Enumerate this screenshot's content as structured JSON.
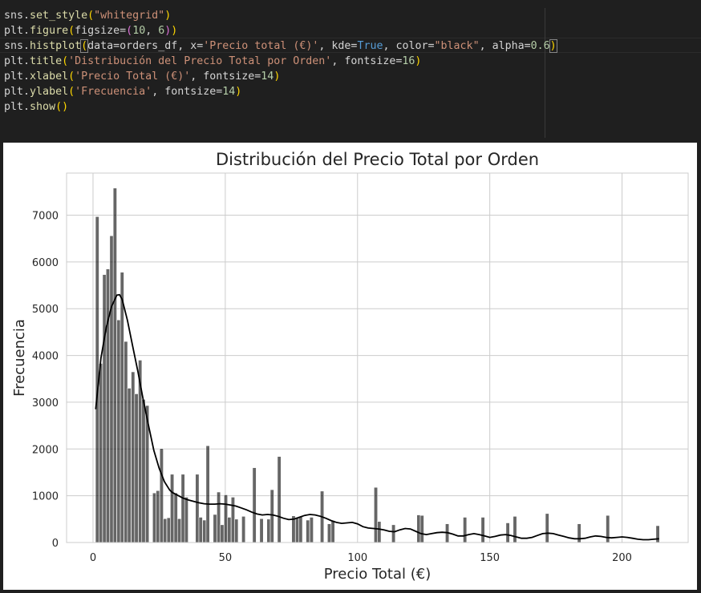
{
  "code": {
    "lines": [
      [
        [
          "sns",
          "t-id"
        ],
        [
          ".",
          "t-id"
        ],
        [
          "set_style",
          "t-fn"
        ],
        [
          "(",
          "t-p1"
        ],
        [
          "\"whitegrid\"",
          "t-str"
        ],
        [
          ")",
          "t-p1"
        ]
      ],
      [
        [
          "plt",
          "t-id"
        ],
        [
          ".",
          "t-id"
        ],
        [
          "figure",
          "t-fn"
        ],
        [
          "(",
          "t-p1"
        ],
        [
          "figsize",
          "t-id"
        ],
        [
          "=",
          "t-id"
        ],
        [
          "(",
          "t-p2"
        ],
        [
          "10",
          "t-num"
        ],
        [
          ", ",
          "t-id"
        ],
        [
          "6",
          "t-num"
        ],
        [
          ")",
          "t-p2"
        ],
        [
          ")",
          "t-p1"
        ]
      ],
      [
        [
          "sns",
          "t-id"
        ],
        [
          ".",
          "t-id"
        ],
        [
          "histplot",
          "t-fn"
        ],
        [
          "(",
          "t-p1 t-bracket-box"
        ],
        [
          "data",
          "t-id"
        ],
        [
          "=",
          "t-id"
        ],
        [
          "orders_df",
          "t-id"
        ],
        [
          ", ",
          "t-id"
        ],
        [
          "x",
          "t-id"
        ],
        [
          "=",
          "t-id"
        ],
        [
          "'Precio total (€)'",
          "t-str"
        ],
        [
          ", ",
          "t-id"
        ],
        [
          "kde",
          "t-id"
        ],
        [
          "=",
          "t-id"
        ],
        [
          "True",
          "t-kw"
        ],
        [
          ", ",
          "t-id"
        ],
        [
          "color",
          "t-id"
        ],
        [
          "=",
          "t-id"
        ],
        [
          "\"black\"",
          "t-str"
        ],
        [
          ", ",
          "t-id"
        ],
        [
          "alpha",
          "t-id"
        ],
        [
          "=",
          "t-id"
        ],
        [
          "0.6",
          "t-num"
        ],
        [
          ")",
          "t-p1 t-bracket-box"
        ]
      ],
      [
        [
          "plt",
          "t-id"
        ],
        [
          ".",
          "t-id"
        ],
        [
          "title",
          "t-fn"
        ],
        [
          "(",
          "t-p1"
        ],
        [
          "'Distribución del Precio Total por Orden'",
          "t-str"
        ],
        [
          ", ",
          "t-id"
        ],
        [
          "fontsize",
          "t-id"
        ],
        [
          "=",
          "t-id"
        ],
        [
          "16",
          "t-num"
        ],
        [
          ")",
          "t-p1"
        ]
      ],
      [
        [
          "plt",
          "t-id"
        ],
        [
          ".",
          "t-id"
        ],
        [
          "xlabel",
          "t-fn"
        ],
        [
          "(",
          "t-p1"
        ],
        [
          "'Precio Total (€)'",
          "t-str"
        ],
        [
          ", ",
          "t-id"
        ],
        [
          "fontsize",
          "t-id"
        ],
        [
          "=",
          "t-id"
        ],
        [
          "14",
          "t-num"
        ],
        [
          ")",
          "t-p1"
        ]
      ],
      [
        [
          "plt",
          "t-id"
        ],
        [
          ".",
          "t-id"
        ],
        [
          "ylabel",
          "t-fn"
        ],
        [
          "(",
          "t-p1"
        ],
        [
          "'Frecuencia'",
          "t-str"
        ],
        [
          ", ",
          "t-id"
        ],
        [
          "fontsize",
          "t-id"
        ],
        [
          "=",
          "t-id"
        ],
        [
          "14",
          "t-num"
        ],
        [
          ")",
          "t-p1"
        ]
      ],
      [
        [
          "plt",
          "t-id"
        ],
        [
          ".",
          "t-id"
        ],
        [
          "show",
          "t-fn"
        ],
        [
          "(",
          "t-p1"
        ],
        [
          ")",
          "t-p1"
        ]
      ]
    ]
  },
  "chart_data": {
    "type": "bar",
    "title": "Distribución del Precio Total por Orden",
    "xlabel": "Precio Total (€)",
    "ylabel": "Frecuencia",
    "xlim": [
      -10,
      225
    ],
    "ylim": [
      0,
      7900
    ],
    "xticks": [
      0,
      50,
      100,
      150,
      200
    ],
    "yticks": [
      0,
      1000,
      2000,
      3000,
      4000,
      5000,
      6000,
      7000
    ],
    "grid": true,
    "bar_color": "#000000",
    "bar_alpha": 0.6,
    "bin_width": 1.35,
    "bins": [
      [
        1.6,
        6970
      ],
      [
        2.9,
        3830
      ],
      [
        4.3,
        5730
      ],
      [
        5.6,
        5850
      ],
      [
        7.0,
        6560
      ],
      [
        8.3,
        7580
      ],
      [
        9.7,
        4760
      ],
      [
        11.0,
        5780
      ],
      [
        12.4,
        4300
      ],
      [
        13.7,
        3300
      ],
      [
        15.1,
        3650
      ],
      [
        16.4,
        3180
      ],
      [
        17.8,
        3900
      ],
      [
        19.1,
        3060
      ],
      [
        20.5,
        2930
      ],
      [
        21.8,
        0
      ],
      [
        23.2,
        1060
      ],
      [
        24.5,
        1110
      ],
      [
        25.9,
        2010
      ],
      [
        27.2,
        510
      ],
      [
        28.6,
        530
      ],
      [
        29.9,
        1460
      ],
      [
        31.3,
        1060
      ],
      [
        32.6,
        510
      ],
      [
        34.0,
        1460
      ],
      [
        35.3,
        970
      ],
      [
        36.7,
        0
      ],
      [
        38.0,
        0
      ],
      [
        39.4,
        1460
      ],
      [
        40.7,
        540
      ],
      [
        42.1,
        480
      ],
      [
        43.4,
        2070
      ],
      [
        44.8,
        0
      ],
      [
        46.1,
        600
      ],
      [
        47.5,
        1080
      ],
      [
        48.8,
        380
      ],
      [
        50.2,
        1020
      ],
      [
        51.5,
        540
      ],
      [
        52.9,
        970
      ],
      [
        54.2,
        500
      ],
      [
        55.6,
        0
      ],
      [
        56.9,
        560
      ],
      [
        58.3,
        0
      ],
      [
        59.6,
        0
      ],
      [
        61.0,
        1600
      ],
      [
        62.3,
        0
      ],
      [
        63.7,
        510
      ],
      [
        65.0,
        0
      ],
      [
        66.4,
        500
      ],
      [
        67.7,
        1130
      ],
      [
        69.1,
        0
      ],
      [
        70.4,
        1840
      ],
      [
        71.8,
        0
      ],
      [
        73.1,
        0
      ],
      [
        74.5,
        0
      ],
      [
        75.8,
        570
      ],
      [
        77.2,
        540
      ],
      [
        78.5,
        560
      ],
      [
        79.9,
        0
      ],
      [
        81.2,
        480
      ],
      [
        82.6,
        540
      ],
      [
        83.9,
        0
      ],
      [
        85.3,
        0
      ],
      [
        86.6,
        1100
      ],
      [
        88.0,
        0
      ],
      [
        89.3,
        400
      ],
      [
        90.7,
        470
      ],
      [
        92.0,
        0
      ],
      [
        93.4,
        0
      ],
      [
        94.7,
        0
      ],
      [
        96.1,
        0
      ],
      [
        97.4,
        0
      ],
      [
        98.8,
        0
      ],
      [
        100.1,
        0
      ],
      [
        101.5,
        0
      ],
      [
        102.8,
        0
      ],
      [
        104.2,
        0
      ],
      [
        105.5,
        0
      ],
      [
        106.9,
        1180
      ],
      [
        108.2,
        450
      ],
      [
        109.6,
        0
      ],
      [
        110.9,
        0
      ],
      [
        112.3,
        0
      ],
      [
        113.6,
        380
      ],
      [
        115.0,
        0
      ],
      [
        116.3,
        0
      ],
      [
        117.7,
        0
      ],
      [
        119.0,
        0
      ],
      [
        120.4,
        0
      ],
      [
        121.7,
        0
      ],
      [
        123.1,
        590
      ],
      [
        124.4,
        580
      ],
      [
        125.8,
        0
      ],
      [
        127.1,
        0
      ],
      [
        128.5,
        0
      ],
      [
        129.8,
        0
      ],
      [
        131.2,
        0
      ],
      [
        132.5,
        0
      ],
      [
        133.9,
        400
      ],
      [
        135.2,
        0
      ],
      [
        136.6,
        0
      ],
      [
        137.9,
        0
      ],
      [
        139.3,
        0
      ],
      [
        140.6,
        540
      ],
      [
        142.0,
        0
      ],
      [
        143.3,
        0
      ],
      [
        144.7,
        0
      ],
      [
        146.0,
        0
      ],
      [
        147.4,
        540
      ],
      [
        148.7,
        0
      ],
      [
        150.1,
        0
      ],
      [
        151.4,
        0
      ],
      [
        152.8,
        0
      ],
      [
        154.1,
        0
      ],
      [
        155.5,
        0
      ],
      [
        156.8,
        420
      ],
      [
        158.2,
        0
      ],
      [
        159.5,
        560
      ],
      [
        160.9,
        0
      ],
      [
        162.2,
        0
      ],
      [
        163.6,
        0
      ],
      [
        164.9,
        0
      ],
      [
        166.3,
        0
      ],
      [
        167.6,
        0
      ],
      [
        169.0,
        0
      ],
      [
        170.3,
        0
      ],
      [
        171.7,
        620
      ],
      [
        173.0,
        0
      ],
      [
        174.4,
        0
      ],
      [
        175.7,
        0
      ],
      [
        177.1,
        0
      ],
      [
        178.4,
        0
      ],
      [
        179.8,
        0
      ],
      [
        181.1,
        0
      ],
      [
        182.5,
        0
      ],
      [
        183.8,
        400
      ],
      [
        185.2,
        0
      ],
      [
        186.5,
        0
      ],
      [
        187.9,
        0
      ],
      [
        189.2,
        0
      ],
      [
        190.6,
        0
      ],
      [
        191.9,
        0
      ],
      [
        193.3,
        0
      ],
      [
        194.6,
        580
      ],
      [
        196.0,
        0
      ],
      [
        197.3,
        0
      ],
      [
        198.7,
        0
      ],
      [
        200.0,
        0
      ],
      [
        201.4,
        0
      ],
      [
        202.7,
        0
      ],
      [
        204.1,
        0
      ],
      [
        205.4,
        0
      ],
      [
        206.8,
        0
      ],
      [
        208.1,
        0
      ],
      [
        209.5,
        0
      ],
      [
        210.8,
        0
      ],
      [
        212.2,
        0
      ],
      [
        213.5,
        360
      ]
    ],
    "kde": {
      "x": [
        1,
        3,
        5,
        7,
        9,
        10,
        11,
        13,
        15,
        17,
        19,
        21,
        23,
        25,
        27,
        29,
        30,
        32,
        34,
        36,
        38,
        40,
        42,
        44,
        46,
        48,
        50,
        52,
        54,
        56,
        58,
        60,
        62,
        64,
        66,
        68,
        70,
        72,
        74,
        76,
        78,
        80,
        82,
        84,
        86,
        88,
        90,
        92,
        94,
        96,
        98,
        100,
        102,
        104,
        106,
        108,
        110,
        112,
        114,
        116,
        118,
        120,
        122,
        124,
        126,
        128,
        130,
        132,
        134,
        136,
        138,
        140,
        142,
        144,
        146,
        148,
        150,
        152,
        154,
        156,
        158,
        160,
        162,
        164,
        166,
        168,
        170,
        172,
        174,
        176,
        178,
        180,
        182,
        184,
        186,
        188,
        190,
        192,
        194,
        196,
        198,
        200,
        202,
        204,
        206,
        208,
        210,
        212,
        214
      ],
      "y": [
        2850,
        3950,
        4600,
        5050,
        5290,
        5300,
        5200,
        4750,
        4200,
        3650,
        3050,
        2500,
        1970,
        1590,
        1300,
        1120,
        1070,
        1010,
        950,
        910,
        880,
        850,
        830,
        820,
        820,
        830,
        820,
        800,
        780,
        740,
        700,
        650,
        610,
        590,
        600,
        590,
        560,
        520,
        490,
        500,
        540,
        580,
        600,
        590,
        560,
        520,
        470,
        430,
        410,
        420,
        430,
        400,
        340,
        310,
        300,
        290,
        270,
        240,
        230,
        270,
        300,
        290,
        240,
        190,
        170,
        190,
        210,
        220,
        210,
        180,
        140,
        140,
        170,
        190,
        170,
        140,
        110,
        130,
        160,
        170,
        150,
        120,
        90,
        90,
        110,
        150,
        190,
        200,
        190,
        160,
        130,
        100,
        80,
        80,
        90,
        120,
        140,
        130,
        110,
        100,
        110,
        120,
        110,
        90,
        70,
        60,
        60,
        70,
        80
      ]
    },
    "kde_color": "#000000"
  }
}
